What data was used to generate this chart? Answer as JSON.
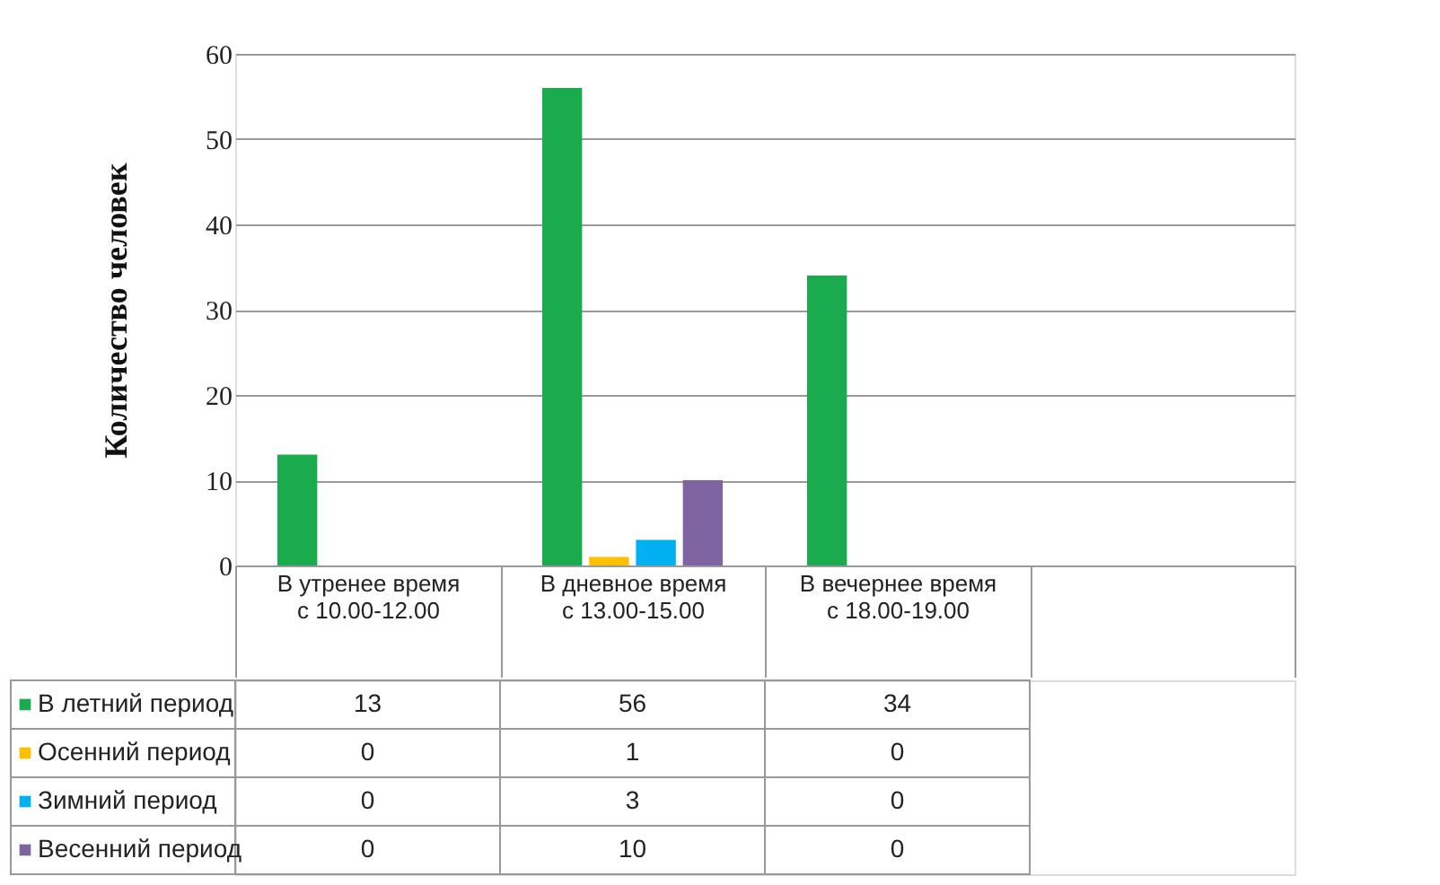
{
  "chart_data": {
    "type": "bar",
    "ylabel": "Количество человек",
    "categories": [
      "В утренее время с 10.00-12.00",
      "В дневное время с 13.00-15.00",
      "В вечернее время с 18.00-19.00",
      null
    ],
    "series": [
      {
        "name": "В летний период",
        "color": "#1aab4e",
        "values": [
          13,
          56,
          34,
          null
        ]
      },
      {
        "name": "Осенний период",
        "color": "#ffc000",
        "values": [
          0,
          1,
          0,
          null
        ]
      },
      {
        "name": "Зимний период",
        "color": "#00b0f0",
        "values": [
          0,
          3,
          0,
          null
        ]
      },
      {
        "name": "Весенний период",
        "color": "#7e64a0",
        "values": [
          0,
          10,
          0,
          null
        ]
      }
    ],
    "ylim": [
      0,
      60
    ],
    "yticks": [
      0,
      10,
      20,
      30,
      40,
      50,
      60
    ],
    "grid": "y",
    "data_labels": true,
    "legend": "bottom left"
  }
}
